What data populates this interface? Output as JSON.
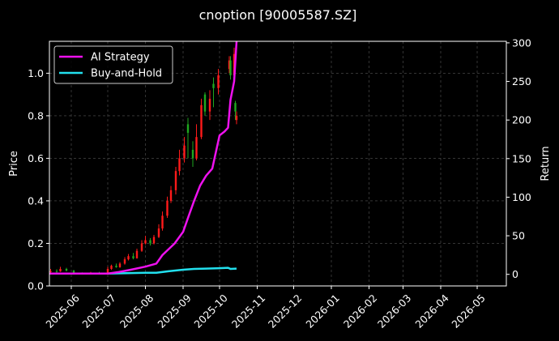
{
  "colors": {
    "background": "#000000",
    "text": "#ffffff",
    "grid": "#555555",
    "candle_up": "#ff1a1a",
    "candle_down": "#1fa81f",
    "ai_strategy": "#ee11ee",
    "buy_and_hold": "#22e0ee"
  },
  "chart_data": {
    "type": "line",
    "title": "cnoption [90005587.SZ]",
    "ylabel": "Price",
    "y2label": "Return",
    "ylim": [
      0,
      1.15
    ],
    "y2lim": [
      -15,
      302
    ],
    "xlim": [
      "2025-05-14",
      "2026-05-25"
    ],
    "grid": true,
    "legend_position": "top-left",
    "x_ticks": [
      "2025-06-01",
      "2025-07-01",
      "2025-08-01",
      "2025-09-01",
      "2025-10-01",
      "2025-11-01",
      "2025-12-01",
      "2026-01-01",
      "2026-02-01",
      "2026-03-01",
      "2026-04-01",
      "2026-05-01"
    ],
    "x_tick_labels": [
      "2025-06",
      "2025-07",
      "2025-08",
      "2025-09",
      "2025-10",
      "2025-11",
      "2025-12",
      "2026-01",
      "2026-02",
      "2026-03",
      "2026-04",
      "2026-05"
    ],
    "y_ticks": [
      "0.0",
      "0.2",
      "0.4",
      "0.6",
      "0.8",
      "1.0"
    ],
    "y2_ticks": [
      "0",
      "50",
      "100",
      "150",
      "200",
      "250",
      "300"
    ],
    "series": [
      {
        "name": "AI Strategy",
        "axis": "right",
        "x": [
          "2025-05-14",
          "2025-06-10",
          "2025-07-01",
          "2025-07-10",
          "2025-07-20",
          "2025-08-01",
          "2025-08-10",
          "2025-08-15",
          "2025-08-25",
          "2025-09-01",
          "2025-09-05",
          "2025-09-10",
          "2025-09-15",
          "2025-09-20",
          "2025-09-25",
          "2025-10-01",
          "2025-10-05",
          "2025-10-08",
          "2025-10-10",
          "2025-10-13",
          "2025-10-15"
        ],
        "y": [
          1,
          1,
          1,
          3,
          6,
          10,
          14,
          25,
          40,
          55,
          73,
          95,
          115,
          128,
          137,
          180,
          185,
          190,
          226,
          250,
          302
        ]
      },
      {
        "name": "Buy-and-Hold",
        "axis": "right",
        "x": [
          "2025-05-14",
          "2025-07-01",
          "2025-08-01",
          "2025-08-10",
          "2025-08-20",
          "2025-09-01",
          "2025-09-10",
          "2025-09-20",
          "2025-10-01",
          "2025-10-08",
          "2025-10-10",
          "2025-10-15"
        ],
        "y": [
          1,
          1,
          2,
          2,
          4,
          6,
          7,
          7.5,
          8,
          8.5,
          7,
          7.5
        ]
      },
      {
        "name": "Price",
        "type": "candlestick",
        "axis": "left",
        "data": [
          {
            "date": "2025-05-15",
            "open": 0.065,
            "close": 0.07,
            "high": 0.08,
            "low": 0.06
          },
          {
            "date": "2025-05-20",
            "open": 0.07,
            "close": 0.068,
            "high": 0.078,
            "low": 0.062
          },
          {
            "date": "2025-05-23",
            "open": 0.068,
            "close": 0.08,
            "high": 0.09,
            "low": 0.066
          },
          {
            "date": "2025-05-28",
            "open": 0.08,
            "close": 0.072,
            "high": 0.085,
            "low": 0.068
          },
          {
            "date": "2025-06-03",
            "open": 0.072,
            "close": 0.06,
            "high": 0.075,
            "low": 0.056
          },
          {
            "date": "2025-06-10",
            "open": 0.06,
            "close": 0.058,
            "high": 0.064,
            "low": 0.054
          },
          {
            "date": "2025-06-17",
            "open": 0.058,
            "close": 0.062,
            "high": 0.066,
            "low": 0.055
          },
          {
            "date": "2025-06-24",
            "open": 0.062,
            "close": 0.06,
            "high": 0.066,
            "low": 0.057
          },
          {
            "date": "2025-07-01",
            "open": 0.06,
            "close": 0.08,
            "high": 0.09,
            "low": 0.058
          },
          {
            "date": "2025-07-04",
            "open": 0.08,
            "close": 0.095,
            "high": 0.1,
            "low": 0.075
          },
          {
            "date": "2025-07-08",
            "open": 0.095,
            "close": 0.088,
            "high": 0.105,
            "low": 0.085
          },
          {
            "date": "2025-07-11",
            "open": 0.088,
            "close": 0.105,
            "high": 0.112,
            "low": 0.085
          },
          {
            "date": "2025-07-15",
            "open": 0.105,
            "close": 0.125,
            "high": 0.135,
            "low": 0.1
          },
          {
            "date": "2025-07-18",
            "open": 0.125,
            "close": 0.14,
            "high": 0.15,
            "low": 0.12
          },
          {
            "date": "2025-07-22",
            "open": 0.14,
            "close": 0.13,
            "high": 0.155,
            "low": 0.125
          },
          {
            "date": "2025-07-25",
            "open": 0.13,
            "close": 0.165,
            "high": 0.175,
            "low": 0.128
          },
          {
            "date": "2025-07-29",
            "open": 0.165,
            "close": 0.2,
            "high": 0.215,
            "low": 0.16
          },
          {
            "date": "2025-08-01",
            "open": 0.2,
            "close": 0.215,
            "high": 0.235,
            "low": 0.195
          },
          {
            "date": "2025-08-05",
            "open": 0.215,
            "close": 0.2,
            "high": 0.225,
            "low": 0.19
          },
          {
            "date": "2025-08-08",
            "open": 0.2,
            "close": 0.23,
            "high": 0.24,
            "low": 0.195
          },
          {
            "date": "2025-08-12",
            "open": 0.23,
            "close": 0.27,
            "high": 0.29,
            "low": 0.225
          },
          {
            "date": "2025-08-15",
            "open": 0.27,
            "close": 0.33,
            "high": 0.35,
            "low": 0.26
          },
          {
            "date": "2025-08-19",
            "open": 0.33,
            "close": 0.4,
            "high": 0.42,
            "low": 0.32
          },
          {
            "date": "2025-08-22",
            "open": 0.4,
            "close": 0.45,
            "high": 0.47,
            "low": 0.39
          },
          {
            "date": "2025-08-26",
            "open": 0.45,
            "close": 0.54,
            "high": 0.56,
            "low": 0.43
          },
          {
            "date": "2025-08-29",
            "open": 0.54,
            "close": 0.6,
            "high": 0.64,
            "low": 0.52
          },
          {
            "date": "2025-09-02",
            "open": 0.6,
            "close": 0.66,
            "high": 0.7,
            "low": 0.58
          },
          {
            "date": "2025-09-05",
            "open": 0.76,
            "close": 0.72,
            "high": 0.79,
            "low": 0.6
          },
          {
            "date": "2025-09-09",
            "open": 0.64,
            "close": 0.6,
            "high": 0.68,
            "low": 0.56
          },
          {
            "date": "2025-09-12",
            "open": 0.6,
            "close": 0.7,
            "high": 0.76,
            "low": 0.59
          },
          {
            "date": "2025-09-16",
            "open": 0.7,
            "close": 0.85,
            "high": 0.88,
            "low": 0.69
          },
          {
            "date": "2025-09-19",
            "open": 0.9,
            "close": 0.82,
            "high": 0.91,
            "low": 0.8
          },
          {
            "date": "2025-09-23",
            "open": 0.82,
            "close": 0.88,
            "high": 0.92,
            "low": 0.78
          },
          {
            "date": "2025-09-26",
            "open": 0.95,
            "close": 0.93,
            "high": 0.98,
            "low": 0.84
          },
          {
            "date": "2025-09-30",
            "open": 0.93,
            "close": 0.99,
            "high": 1.02,
            "low": 0.9
          },
          {
            "date": "2025-10-09",
            "open": 1.02,
            "close": 1.06,
            "high": 1.08,
            "low": 1.0
          },
          {
            "date": "2025-10-10",
            "open": 1.06,
            "close": 0.99,
            "high": 1.08,
            "low": 0.97
          },
          {
            "date": "2025-10-13",
            "open": 0.99,
            "close": 1.09,
            "high": 1.12,
            "low": 0.98
          },
          {
            "date": "2025-10-14",
            "open": 0.86,
            "close": 0.82,
            "high": 0.87,
            "low": 0.78
          },
          {
            "date": "2025-10-15",
            "open": 0.78,
            "close": 0.8,
            "high": 0.82,
            "low": 0.76
          }
        ]
      }
    ]
  }
}
